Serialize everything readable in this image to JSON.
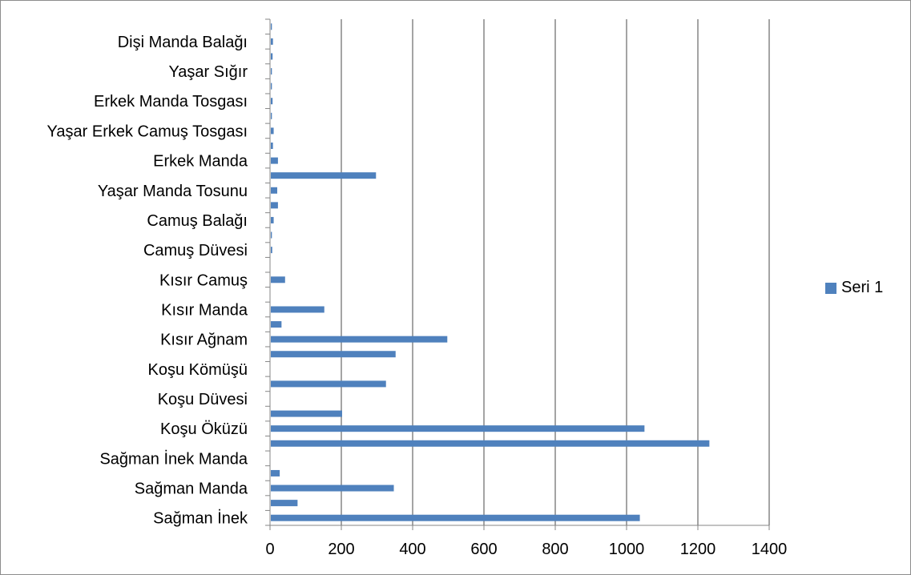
{
  "chart_data": {
    "type": "bar",
    "orientation": "horizontal",
    "title": "",
    "xlabel": "",
    "ylabel": "",
    "xlim": [
      0,
      1400
    ],
    "x_ticks": [
      "0",
      "200",
      "400",
      "600",
      "800",
      "1000",
      "1200",
      "1400"
    ],
    "grid": "vertical major gridlines",
    "legend_position": "right",
    "categories": [
      "Sağman İnek",
      "",
      "Sağman Manda",
      "",
      "Sağman İnek Manda",
      "",
      "Koşu Öküzü",
      "",
      "Koşu Düvesi",
      "",
      "Koşu Kömüşü",
      "",
      "Kısır Ağnam",
      "",
      "Kısır Manda",
      "",
      "Kısır Camuş",
      "",
      "Camuş Düvesi",
      "",
      "Camuş Balağı",
      "",
      "Yaşar Manda Tosunu",
      "",
      "Erkek Manda",
      "",
      "Yaşar Erkek Camuş Tosgası",
      "",
      "Erkek Manda Tosgası",
      "",
      "Yaşar Sığır",
      "",
      "Dişi Manda Balağı",
      ""
    ],
    "series": [
      {
        "name": "Seri 1",
        "color": "#4f81bd",
        "values": [
          1035,
          75,
          345,
          25,
          0,
          1230,
          1048,
          200,
          0,
          323,
          0,
          350,
          495,
          30,
          150,
          0,
          40,
          0,
          4,
          3,
          8,
          20,
          18,
          295,
          20,
          6,
          8,
          3,
          5,
          3,
          3,
          5,
          6,
          3
        ]
      }
    ]
  }
}
